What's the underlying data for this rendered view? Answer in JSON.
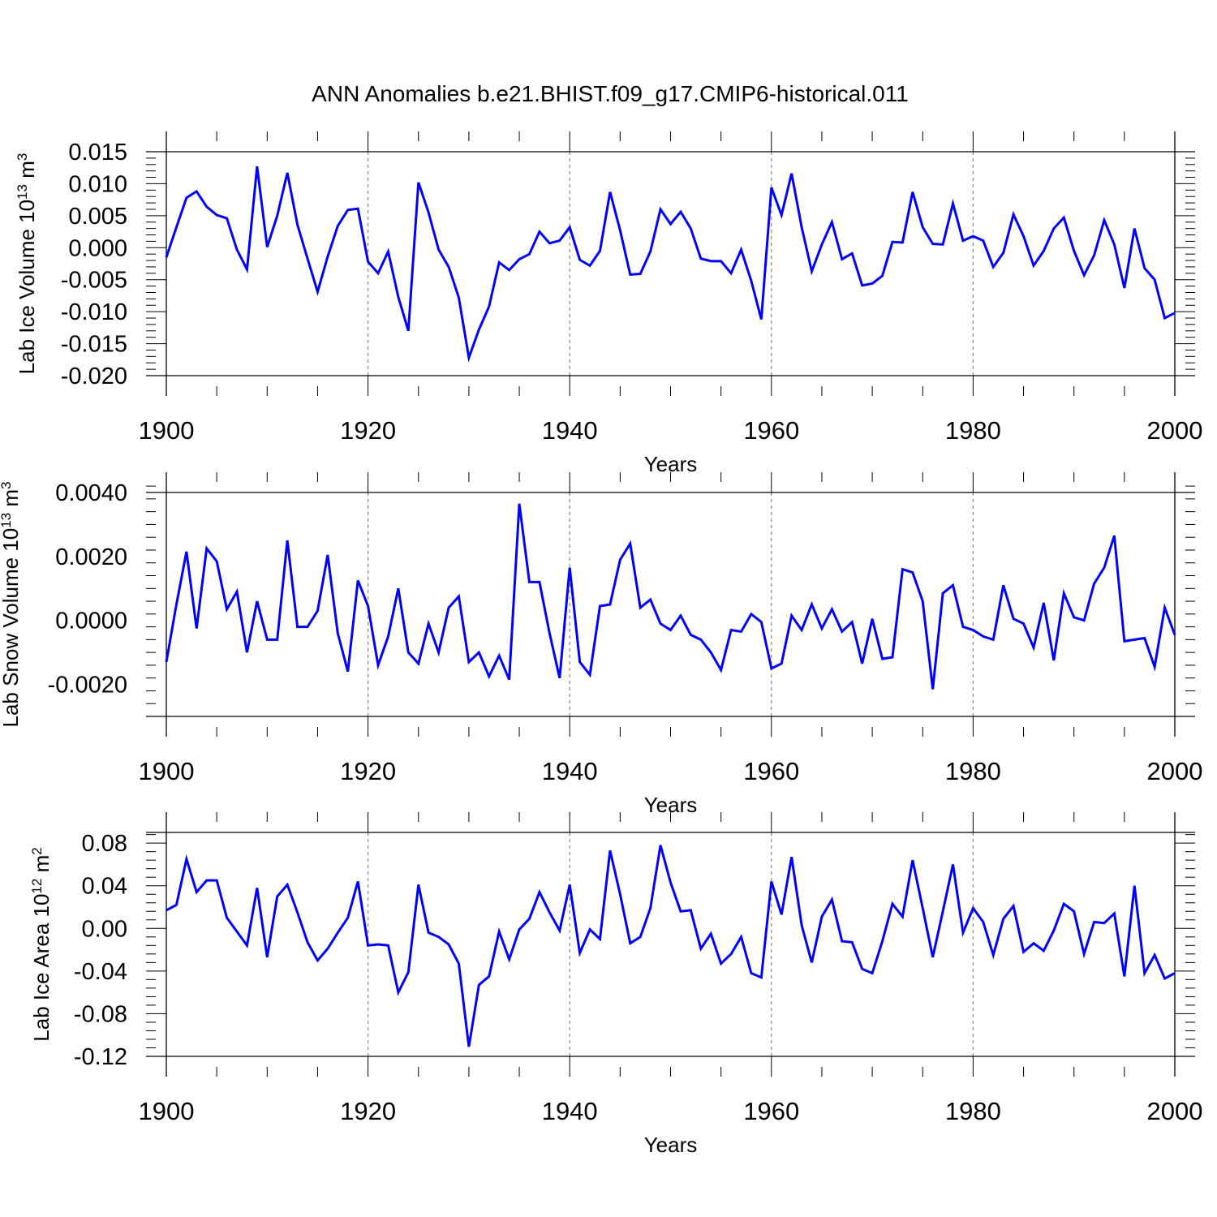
{
  "figure_title": "ANN Anomalies b.e21.BHIST.f09_g17.CMIP6-historical.011",
  "line_color": "#0000ff",
  "chart_data": [
    {
      "type": "line",
      "series_name": "Lab Ice Volume",
      "ylabel": {
        "main": "Lab Ice Volume 10",
        "exp": "13",
        "unit": " m",
        "unit_exp": "3"
      },
      "xlabel": "Years",
      "xlim": [
        1900,
        2000
      ],
      "ylim": [
        -0.02,
        0.015
      ],
      "x_ticks": [
        1900,
        1920,
        1940,
        1960,
        1980,
        2000
      ],
      "y_ticks": [
        -0.02,
        -0.015,
        -0.01,
        -0.005,
        0.0,
        0.005,
        0.01,
        0.015
      ],
      "y_tick_labels": [
        "-0.020",
        "-0.015",
        "-0.010",
        "-0.005",
        "0.000",
        "0.005",
        "0.010",
        "0.015"
      ],
      "x_start": 1900,
      "values": [
        -0.0015,
        0.0032,
        0.0078,
        0.0088,
        0.0064,
        0.0051,
        0.0046,
        -0.0003,
        -0.0034,
        0.0127,
        0.0001,
        0.005,
        0.0117,
        0.0036,
        -0.0017,
        -0.0069,
        -0.0014,
        0.0034,
        0.0059,
        0.0061,
        -0.0022,
        -0.004,
        -0.0006,
        -0.0077,
        -0.013,
        0.0102,
        0.0055,
        -0.0003,
        -0.003,
        -0.0078,
        -0.0172,
        -0.0128,
        -0.0092,
        -0.0023,
        -0.0035,
        -0.0018,
        -0.001,
        0.0025,
        0.0007,
        0.0011,
        0.0032,
        -0.0019,
        -0.0028,
        -0.0005,
        0.0087,
        0.0027,
        -0.0042,
        -0.0041,
        -0.0006,
        0.006,
        0.0037,
        0.0056,
        0.003,
        -0.0017,
        -0.0021,
        -0.0021,
        -0.004,
        -0.0003,
        -0.0052,
        -0.0112,
        0.0094,
        0.0051,
        0.0116,
        0.0032,
        -0.0037,
        0.0005,
        0.004,
        -0.0018,
        -0.0009,
        -0.0059,
        -0.0056,
        -0.0044,
        0.0009,
        0.0008,
        0.0087,
        0.0032,
        0.0006,
        0.0005,
        0.0069,
        0.0011,
        0.0018,
        0.0011,
        -0.003,
        -0.0008,
        0.0052,
        0.0018,
        -0.0028,
        -0.0005,
        0.003,
        0.0047,
        -0.0005,
        -0.0043,
        -0.0012,
        0.0043,
        0.0005,
        -0.0063,
        0.003,
        -0.0032,
        -0.005,
        -0.011,
        -0.0102
      ]
    },
    {
      "type": "line",
      "series_name": "Lab Snow Volume",
      "ylabel": {
        "main": "Lab Snow Volume 10",
        "exp": "13",
        "unit": " m",
        "unit_exp": "3"
      },
      "xlabel": "Years",
      "xlim": [
        1900,
        2000
      ],
      "ylim": [
        -0.003,
        0.004
      ],
      "x_ticks": [
        1900,
        1920,
        1940,
        1960,
        1980,
        2000
      ],
      "y_ticks": [
        -0.002,
        0.0,
        0.002,
        0.004
      ],
      "y_tick_labels": [
        "-0.0020",
        "0.0000",
        "0.0020",
        "0.0040"
      ],
      "x_start": 1900,
      "values": [
        -0.0013,
        0.0005,
        0.00215,
        -0.00025,
        0.00225,
        0.00185,
        0.00035,
        0.0009,
        -0.001,
        0.0006,
        -0.0006,
        -0.0006,
        0.0025,
        -0.0002,
        -0.0002,
        0.0003,
        0.00205,
        -0.0004,
        -0.0016,
        0.00125,
        0.00045,
        -0.0014,
        -0.0005,
        0.001,
        -0.001,
        -0.00135,
        -0.0001,
        -0.001,
        0.0004,
        0.00075,
        -0.0013,
        -0.001,
        -0.00175,
        -0.0011,
        -0.00185,
        0.00365,
        0.0012,
        0.0012,
        -0.0004,
        -0.0018,
        0.00165,
        -0.0013,
        -0.0017,
        0.00045,
        0.0005,
        0.0019,
        0.0024,
        0.0004,
        0.00065,
        -0.0001,
        -0.0003,
        0.00015,
        -0.00045,
        -0.0006,
        -0.001,
        -0.00155,
        -0.0003,
        -0.00035,
        0.0002,
        -5e-05,
        -0.0015,
        -0.00135,
        0.00015,
        -0.0003,
        0.0005,
        -0.00025,
        0.00035,
        -0.00035,
        -5e-05,
        -0.00135,
        5e-05,
        -0.0012,
        -0.00115,
        0.0016,
        0.0015,
        0.0006,
        -0.00215,
        0.00085,
        0.0011,
        -0.0002,
        -0.0003,
        -0.0005,
        -0.0006,
        0.0011,
        5e-05,
        -0.0001,
        -0.00085,
        0.00055,
        -0.00125,
        0.00085,
        0.0001,
        0.0,
        0.00115,
        0.00165,
        0.00265,
        -0.00065,
        -0.0006,
        -0.00055,
        -0.00145,
        0.0004,
        -0.00045
      ]
    },
    {
      "type": "line",
      "series_name": "Lab Ice Area",
      "ylabel": {
        "main": "Lab Ice Area 10",
        "exp": "12",
        "unit": " m",
        "unit_exp": "2"
      },
      "xlabel": "Years",
      "xlim": [
        1900,
        2000
      ],
      "ylim": [
        -0.12,
        0.09
      ],
      "x_ticks": [
        1900,
        1920,
        1940,
        1960,
        1980,
        2000
      ],
      "y_ticks": [
        -0.12,
        -0.08,
        -0.04,
        0.0,
        0.04,
        0.08
      ],
      "y_tick_labels": [
        "-0.12",
        "-0.08",
        "-0.04",
        "0.00",
        "0.04",
        "0.08"
      ],
      "x_start": 1900,
      "values": [
        0.017,
        0.022,
        0.065,
        0.034,
        0.045,
        0.045,
        0.01,
        -0.003,
        -0.016,
        0.038,
        -0.027,
        0.03,
        0.041,
        0.015,
        -0.013,
        -0.03,
        -0.019,
        -0.004,
        0.01,
        0.044,
        -0.016,
        -0.015,
        -0.016,
        -0.06,
        -0.041,
        0.041,
        -0.004,
        -0.008,
        -0.015,
        -0.033,
        -0.111,
        -0.053,
        -0.045,
        -0.003,
        -0.029,
        -0.001,
        0.009,
        0.034,
        0.015,
        -0.002,
        0.041,
        -0.023,
        -0.001,
        -0.01,
        0.073,
        0.032,
        -0.014,
        -0.008,
        0.019,
        0.078,
        0.043,
        0.016,
        0.017,
        -0.019,
        -0.005,
        -0.033,
        -0.024,
        -0.008,
        -0.042,
        -0.046,
        0.044,
        0.013,
        0.067,
        0.003,
        -0.032,
        0.011,
        0.027,
        -0.012,
        -0.013,
        -0.038,
        -0.042,
        -0.012,
        0.023,
        0.011,
        0.064,
        0.019,
        -0.027,
        0.016,
        0.06,
        -0.004,
        0.019,
        0.006,
        -0.025,
        0.009,
        0.021,
        -0.022,
        -0.014,
        -0.021,
        -0.002,
        0.023,
        0.016,
        -0.024,
        0.006,
        0.005,
        0.014,
        -0.045,
        0.04,
        -0.042,
        -0.025,
        -0.047,
        -0.042
      ]
    }
  ]
}
